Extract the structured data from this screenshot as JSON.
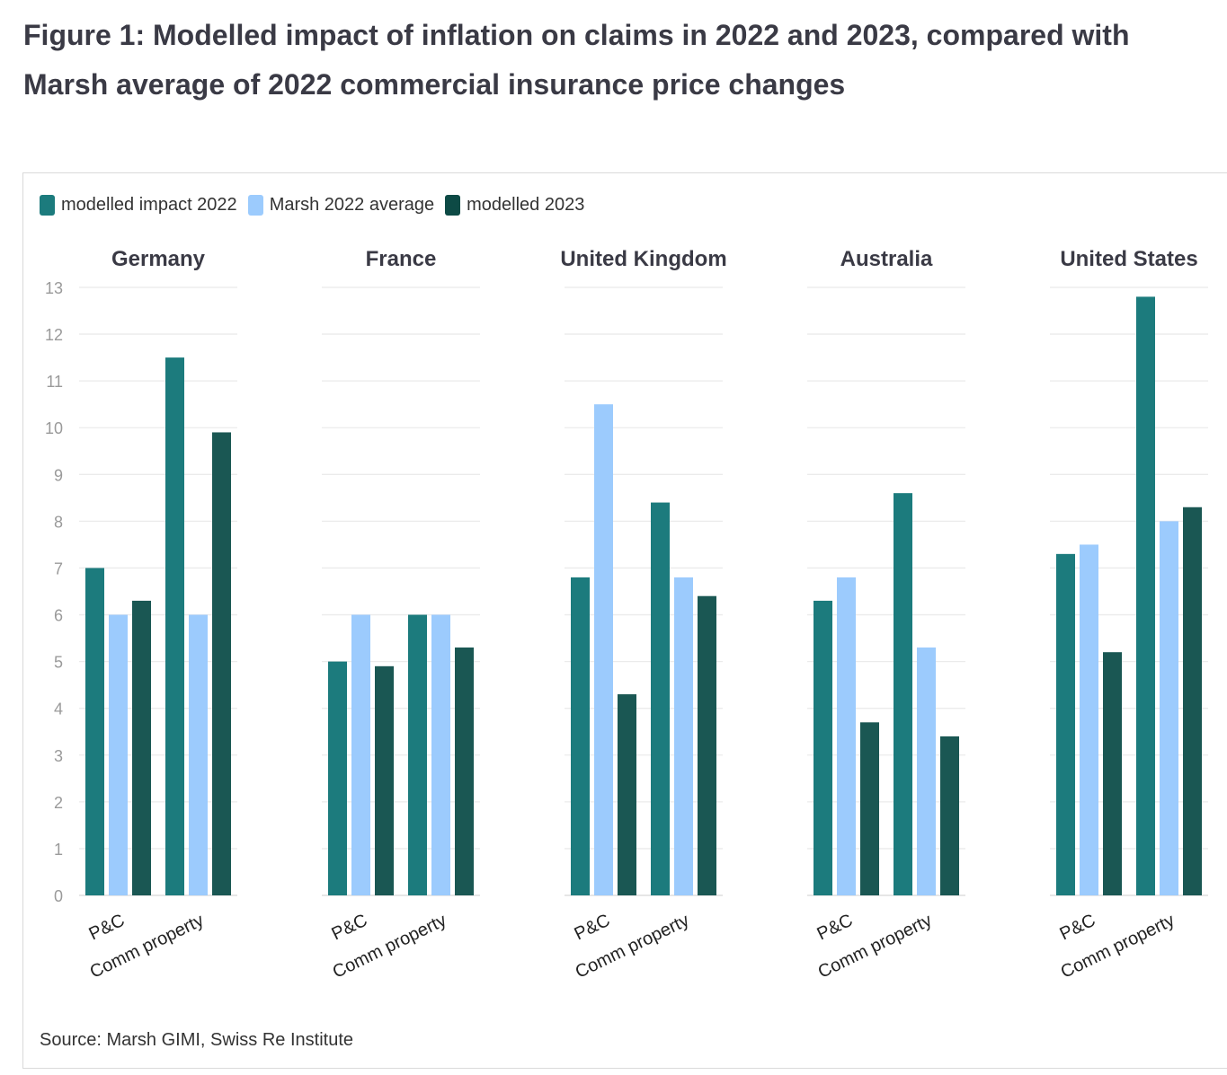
{
  "title": "Figure 1: Modelled impact of inflation on claims in 2022 and 2023, compared with Marsh average of 2022 commercial insurance price changes",
  "source": "Source: Marsh GIMI, Swiss Re Institute",
  "colors": {
    "modelled_2022": "#1c7b7d",
    "marsh_2022": "#9ccbfd",
    "modelled_2023": "#1a5753"
  },
  "chart_data": {
    "type": "bar",
    "legend": "top-left",
    "ylim": [
      0,
      13
    ],
    "yticks": [
      0,
      1,
      2,
      3,
      4,
      5,
      6,
      7,
      8,
      9,
      10,
      11,
      12,
      13
    ],
    "grid": true,
    "categories": [
      "P&C",
      "Comm property"
    ],
    "series_names": [
      "modelled impact 2022",
      "Marsh 2022 average",
      "modelled 2023"
    ],
    "panels": [
      {
        "name": "Germany",
        "series": [
          {
            "name": "modelled impact 2022",
            "values": [
              7.0,
              11.5
            ]
          },
          {
            "name": "Marsh 2022 average",
            "values": [
              6.0,
              6.0
            ]
          },
          {
            "name": "modelled 2023",
            "values": [
              6.3,
              9.9
            ]
          }
        ]
      },
      {
        "name": "France",
        "series": [
          {
            "name": "modelled impact 2022",
            "values": [
              5.0,
              6.0
            ]
          },
          {
            "name": "Marsh 2022 average",
            "values": [
              6.0,
              6.0
            ]
          },
          {
            "name": "modelled 2023",
            "values": [
              4.9,
              5.3
            ]
          }
        ]
      },
      {
        "name": "United Kingdom",
        "series": [
          {
            "name": "modelled impact 2022",
            "values": [
              6.8,
              8.4
            ]
          },
          {
            "name": "Marsh 2022 average",
            "values": [
              10.5,
              6.8
            ]
          },
          {
            "name": "modelled 2023",
            "values": [
              4.3,
              6.4
            ]
          }
        ]
      },
      {
        "name": "Australia",
        "series": [
          {
            "name": "modelled impact 2022",
            "values": [
              6.3,
              8.6
            ]
          },
          {
            "name": "Marsh 2022 average",
            "values": [
              6.8,
              5.3
            ]
          },
          {
            "name": "modelled 2023",
            "values": [
              3.7,
              3.4
            ]
          }
        ]
      },
      {
        "name": "United States",
        "series": [
          {
            "name": "modelled impact 2022",
            "values": [
              7.3,
              12.8
            ]
          },
          {
            "name": "Marsh 2022 average",
            "values": [
              7.5,
              8.0
            ]
          },
          {
            "name": "modelled 2023",
            "values": [
              5.2,
              8.3
            ]
          }
        ]
      }
    ]
  }
}
